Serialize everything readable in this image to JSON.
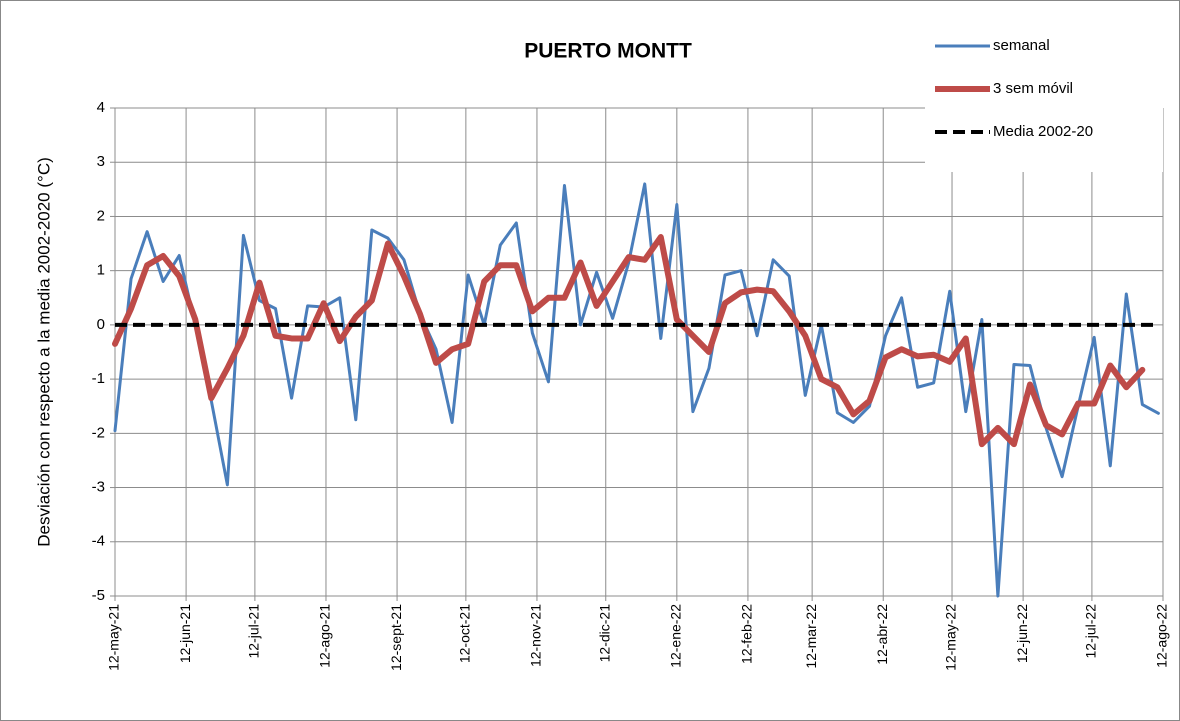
{
  "chart_data": {
    "type": "line",
    "title": "PUERTO MONTT",
    "y_label": "Desviación con respecto a la media 2002-2020 (°C)",
    "x": [
      0,
      7,
      14,
      21,
      28,
      35,
      42,
      49,
      56,
      63,
      70,
      77,
      84,
      91,
      98,
      105,
      112,
      119,
      126,
      133,
      140,
      147,
      154,
      161,
      168,
      175,
      182,
      189,
      196,
      203,
      210,
      217,
      224,
      231,
      238,
      245,
      252,
      259,
      266,
      273,
      280,
      287,
      294,
      301,
      308,
      315,
      322,
      329,
      336,
      343,
      350,
      357,
      364,
      371,
      378,
      385,
      392,
      399,
      406,
      413,
      420,
      427,
      434,
      441,
      448,
      455
    ],
    "series": [
      {
        "name": "semanal",
        "color": "#4a7ebb",
        "width": 3,
        "dash": false,
        "values": [
          -1.95,
          0.85,
          1.72,
          0.8,
          1.28,
          0.0,
          -1.4,
          -2.95,
          1.65,
          0.45,
          0.3,
          -1.35,
          0.35,
          0.33,
          0.5,
          -1.75,
          1.75,
          1.6,
          1.2,
          0.2,
          -0.45,
          -1.8,
          0.92,
          0.0,
          1.47,
          1.88,
          -0.15,
          -1.05,
          2.57,
          0.0,
          0.97,
          0.12,
          1.15,
          2.6,
          -0.25,
          2.22,
          -1.6,
          -0.8,
          0.92,
          1.0,
          -0.2,
          1.2,
          0.9,
          -1.3,
          0.0,
          -1.62,
          -1.8,
          -1.5,
          -0.2,
          0.5,
          -1.15,
          -1.07,
          0.62,
          -1.6,
          0.1,
          -5.0,
          -0.73,
          -0.75,
          -1.9,
          -2.8,
          -1.5,
          -0.23,
          -2.6,
          0.57,
          -1.47,
          -1.63
        ]
      },
      {
        "name": "3 sem móvil",
        "color": "#be4b48",
        "width": 6,
        "dash": false,
        "values": [
          -0.35,
          0.3,
          1.1,
          1.27,
          0.9,
          0.1,
          -1.35,
          -0.8,
          -0.2,
          0.78,
          -0.2,
          -0.25,
          -0.25,
          0.4,
          -0.3,
          0.15,
          0.45,
          1.5,
          0.9,
          0.2,
          -0.7,
          -0.45,
          -0.35,
          0.8,
          1.1,
          1.1,
          0.25,
          0.5,
          0.5,
          1.15,
          0.35,
          0.8,
          1.25,
          1.2,
          1.62,
          0.1,
          -0.2,
          -0.5,
          0.4,
          0.6,
          0.65,
          0.62,
          0.25,
          -0.2,
          -1.0,
          -1.15,
          -1.65,
          -1.4,
          -0.6,
          -0.45,
          -0.58,
          -0.55,
          -0.68,
          -0.25,
          -2.2,
          -1.9,
          -2.2,
          -1.1,
          -1.85,
          -2.02,
          -1.45,
          -1.45,
          -0.75,
          -1.15,
          -0.83,
          null
        ]
      },
      {
        "name": "Media 2002-20",
        "color": "#000000",
        "width": 4,
        "dash": true,
        "values": [
          0,
          0,
          0,
          0,
          0,
          0,
          0,
          0,
          0,
          0,
          0,
          0,
          0,
          0,
          0,
          0,
          0,
          0,
          0,
          0,
          0,
          0,
          0,
          0,
          0,
          0,
          0,
          0,
          0,
          0,
          0,
          0,
          0,
          0,
          0,
          0,
          0,
          0,
          0,
          0,
          0,
          0,
          0,
          0,
          0,
          0,
          0,
          0,
          0,
          0,
          0,
          0,
          0,
          0,
          0,
          0,
          0,
          0,
          0,
          0,
          0,
          0,
          0,
          0,
          0,
          0
        ]
      }
    ],
    "xlim": [
      0,
      457
    ],
    "xticks": [
      {
        "value": 0,
        "label": "12-may-21"
      },
      {
        "value": 31,
        "label": "12-jun-21"
      },
      {
        "value": 61,
        "label": "12-jul-21"
      },
      {
        "value": 92,
        "label": "12-ago-21"
      },
      {
        "value": 123,
        "label": "12-sept-21"
      },
      {
        "value": 153,
        "label": "12-oct-21"
      },
      {
        "value": 184,
        "label": "12-nov-21"
      },
      {
        "value": 214,
        "label": "12-dic-21"
      },
      {
        "value": 245,
        "label": "12-ene-22"
      },
      {
        "value": 276,
        "label": "12-feb-22"
      },
      {
        "value": 304,
        "label": "12-mar-22"
      },
      {
        "value": 335,
        "label": "12-abr-22"
      },
      {
        "value": 365,
        "label": "12-may-22"
      },
      {
        "value": 396,
        "label": "12-jun-22"
      },
      {
        "value": 426,
        "label": "12-jul-22"
      },
      {
        "value": 457,
        "label": "12-ago-22"
      }
    ],
    "ylim": [
      -5,
      4
    ],
    "yticks": [
      -5,
      -4,
      -3,
      -2,
      -1,
      0,
      1,
      2,
      3,
      4
    ],
    "grid": true,
    "legend": "top-right"
  }
}
